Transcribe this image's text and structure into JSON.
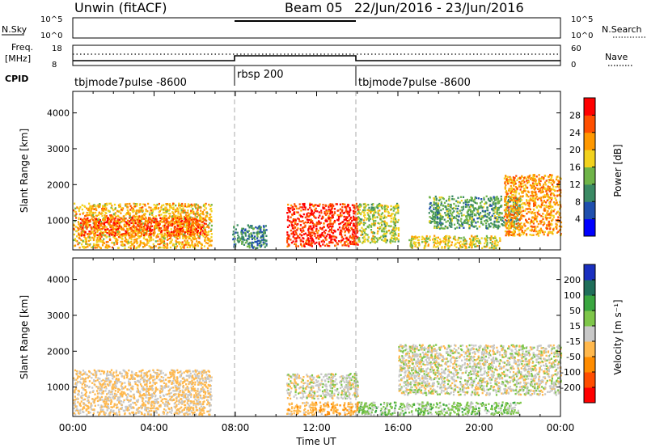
{
  "header": {
    "station": "Unwin (fitACF)",
    "beam": "Beam 05",
    "dates": "22/Jun/2016 - 23/Jun/2016"
  },
  "summary": {
    "nsky_label": "N.Sky",
    "nsearch_label": "N.Search",
    "freq_label_1": "Freq.",
    "freq_label_2": "[MHz]",
    "nave_label": "Nave",
    "cpid_label": "CPID",
    "noise_ticks_left": [
      "10^5",
      "10^0"
    ],
    "noise_ticks_right": [
      "10^5",
      "10^0"
    ],
    "freq_ticks": [
      "18",
      "8"
    ],
    "nave_ticks": [
      "60",
      "0"
    ],
    "cpid_segments": [
      {
        "label": "tbjmode7pulse -8600",
        "start_hour": 0,
        "end_hour": 8
      },
      {
        "label": "rbsp 200",
        "start_hour": 8,
        "end_hour": 14
      },
      {
        "label": "tbjmode7pulse -8600",
        "start_hour": 14,
        "end_hour": 24
      }
    ]
  },
  "axes": {
    "ylabel": "Slant Range [km]",
    "xlabel": "Time UT",
    "y_ticks": [
      "1000",
      "2000",
      "3000",
      "4000"
    ],
    "x_ticks": [
      "00:00",
      "04:00",
      "08:00",
      "12:00",
      "16:00",
      "20:00",
      "00:00"
    ]
  },
  "chart_data": [
    {
      "type": "heatmap",
      "title": "",
      "xlabel": "",
      "ylabel": "Slant Range [km]",
      "x_range_hours": [
        0,
        24
      ],
      "ylim": [
        180,
        4600
      ],
      "colorbar_label": "Power [dB]",
      "colorbar_ticks": [
        4,
        8,
        12,
        16,
        20,
        24,
        28
      ],
      "colorscale": [
        "#0000ff",
        "#1f4fae",
        "#3b8a64",
        "#6fb449",
        "#f2d21e",
        "#ff9800",
        "#ff4f00",
        "#ff0000"
      ],
      "regions": [
        {
          "t0": 0.0,
          "t1": 6.8,
          "r0": 250,
          "r1": 1500,
          "value": 20
        },
        {
          "t0": 0.3,
          "t1": 6.5,
          "r0": 600,
          "r1": 1100,
          "value": 26
        },
        {
          "t0": 7.8,
          "t1": 9.5,
          "r0": 250,
          "r1": 900,
          "value": 10
        },
        {
          "t0": 10.5,
          "t1": 14.0,
          "r0": 300,
          "r1": 1500,
          "value": 28
        },
        {
          "t0": 14.0,
          "t1": 16.0,
          "r0": 400,
          "r1": 1500,
          "value": 16
        },
        {
          "t0": 16.5,
          "t1": 21.0,
          "r0": 250,
          "r1": 600,
          "value": 18
        },
        {
          "t0": 17.5,
          "t1": 22.0,
          "r0": 800,
          "r1": 1700,
          "value": 12
        },
        {
          "t0": 21.2,
          "t1": 24.0,
          "r0": 600,
          "r1": 2300,
          "value": 22
        }
      ]
    },
    {
      "type": "heatmap",
      "title": "",
      "xlabel": "Time UT",
      "ylabel": "Slant Range [km]",
      "x_range_hours": [
        0,
        24
      ],
      "ylim": [
        180,
        4600
      ],
      "colorbar_label": "Velocity [m s⁻¹]",
      "colorbar_ticks": [
        200,
        100,
        50,
        15,
        -15,
        -50,
        -100,
        -200
      ],
      "colorscale": [
        "#1a2fbf",
        "#1f6e5a",
        "#3aa640",
        "#7ec64a",
        "#c8c8c8",
        "#ffb84d",
        "#ff8c00",
        "#ff4d00",
        "#ff0000"
      ],
      "regions": [
        {
          "t0": 0.0,
          "t1": 6.8,
          "r0": 250,
          "r1": 1500,
          "value": -20
        },
        {
          "t0": 10.5,
          "t1": 14.0,
          "r0": 700,
          "r1": 1400,
          "value": 0
        },
        {
          "t0": 10.5,
          "t1": 14.0,
          "r0": 250,
          "r1": 600,
          "value": -40
        },
        {
          "t0": 14.0,
          "t1": 22.0,
          "r0": 250,
          "r1": 600,
          "value": 30
        },
        {
          "t0": 16.0,
          "t1": 24.0,
          "r0": 800,
          "r1": 2200,
          "value": 0
        }
      ]
    }
  ]
}
